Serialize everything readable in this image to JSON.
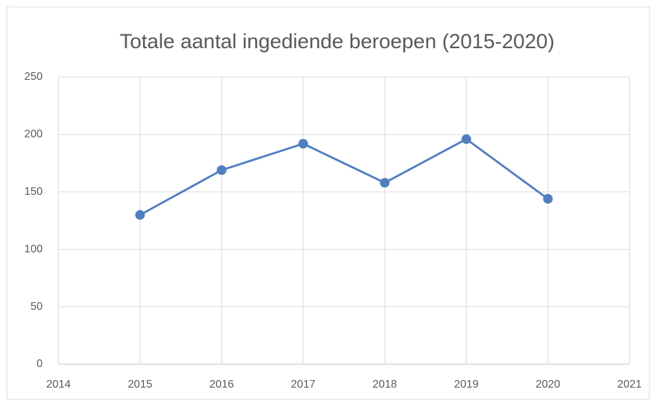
{
  "chart_data": {
    "type": "line",
    "title": "Totale aantal ingediende beroepen (2015-2020)",
    "x": [
      2015,
      2016,
      2017,
      2018,
      2019,
      2020
    ],
    "series": [
      {
        "name": null,
        "color": "#4f7fbf",
        "values": [
          130,
          169,
          192,
          158,
          196,
          144
        ]
      }
    ],
    "xlim": [
      2014,
      2021
    ],
    "xticks": [
      2014,
      2015,
      2016,
      2017,
      2018,
      2019,
      2020,
      2021
    ],
    "ylim": [
      0,
      250
    ],
    "yticks": [
      0,
      50,
      100,
      150,
      200,
      250
    ],
    "grid": true
  }
}
